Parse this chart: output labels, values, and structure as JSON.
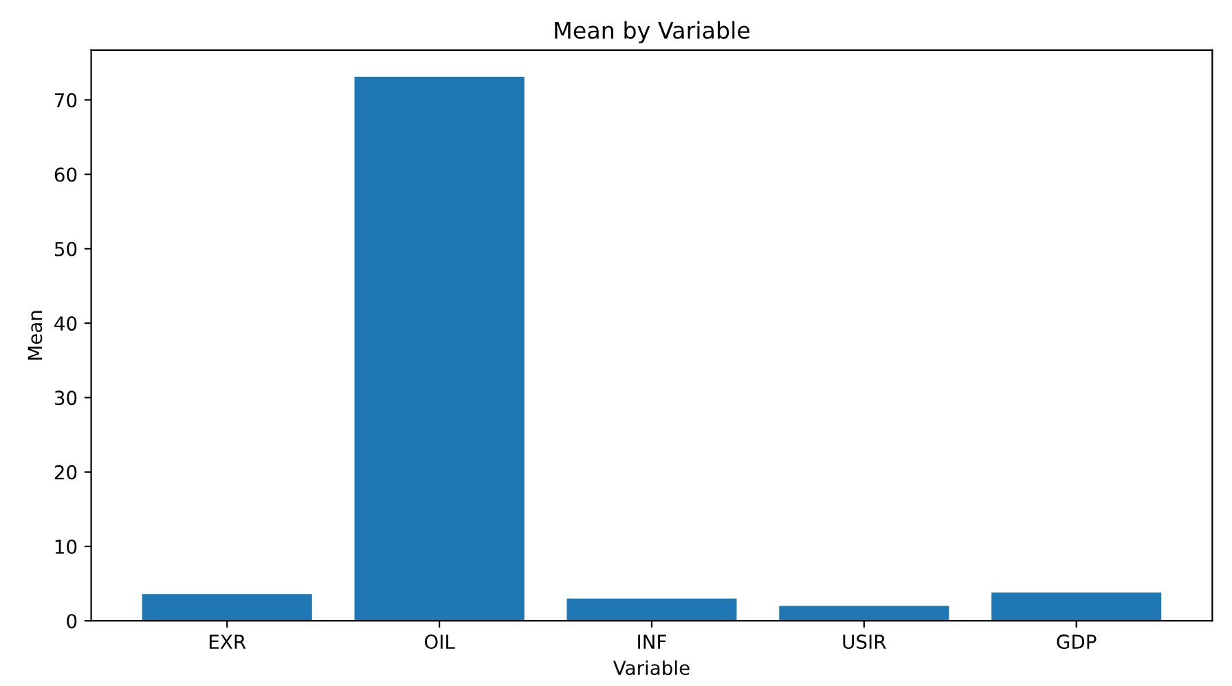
{
  "chart_data": {
    "type": "bar",
    "title": "Mean by Variable",
    "xlabel": "Variable",
    "ylabel": "Mean",
    "categories": [
      "EXR",
      "OIL",
      "INF",
      "USIR",
      "GDP"
    ],
    "values": [
      3.6,
      73.1,
      3.0,
      2.0,
      3.8
    ],
    "color": "#1f77b4",
    "ylim": [
      0,
      76.7
    ],
    "yticks": [
      0,
      10,
      20,
      30,
      40,
      50,
      60,
      70
    ],
    "grid": false
  }
}
